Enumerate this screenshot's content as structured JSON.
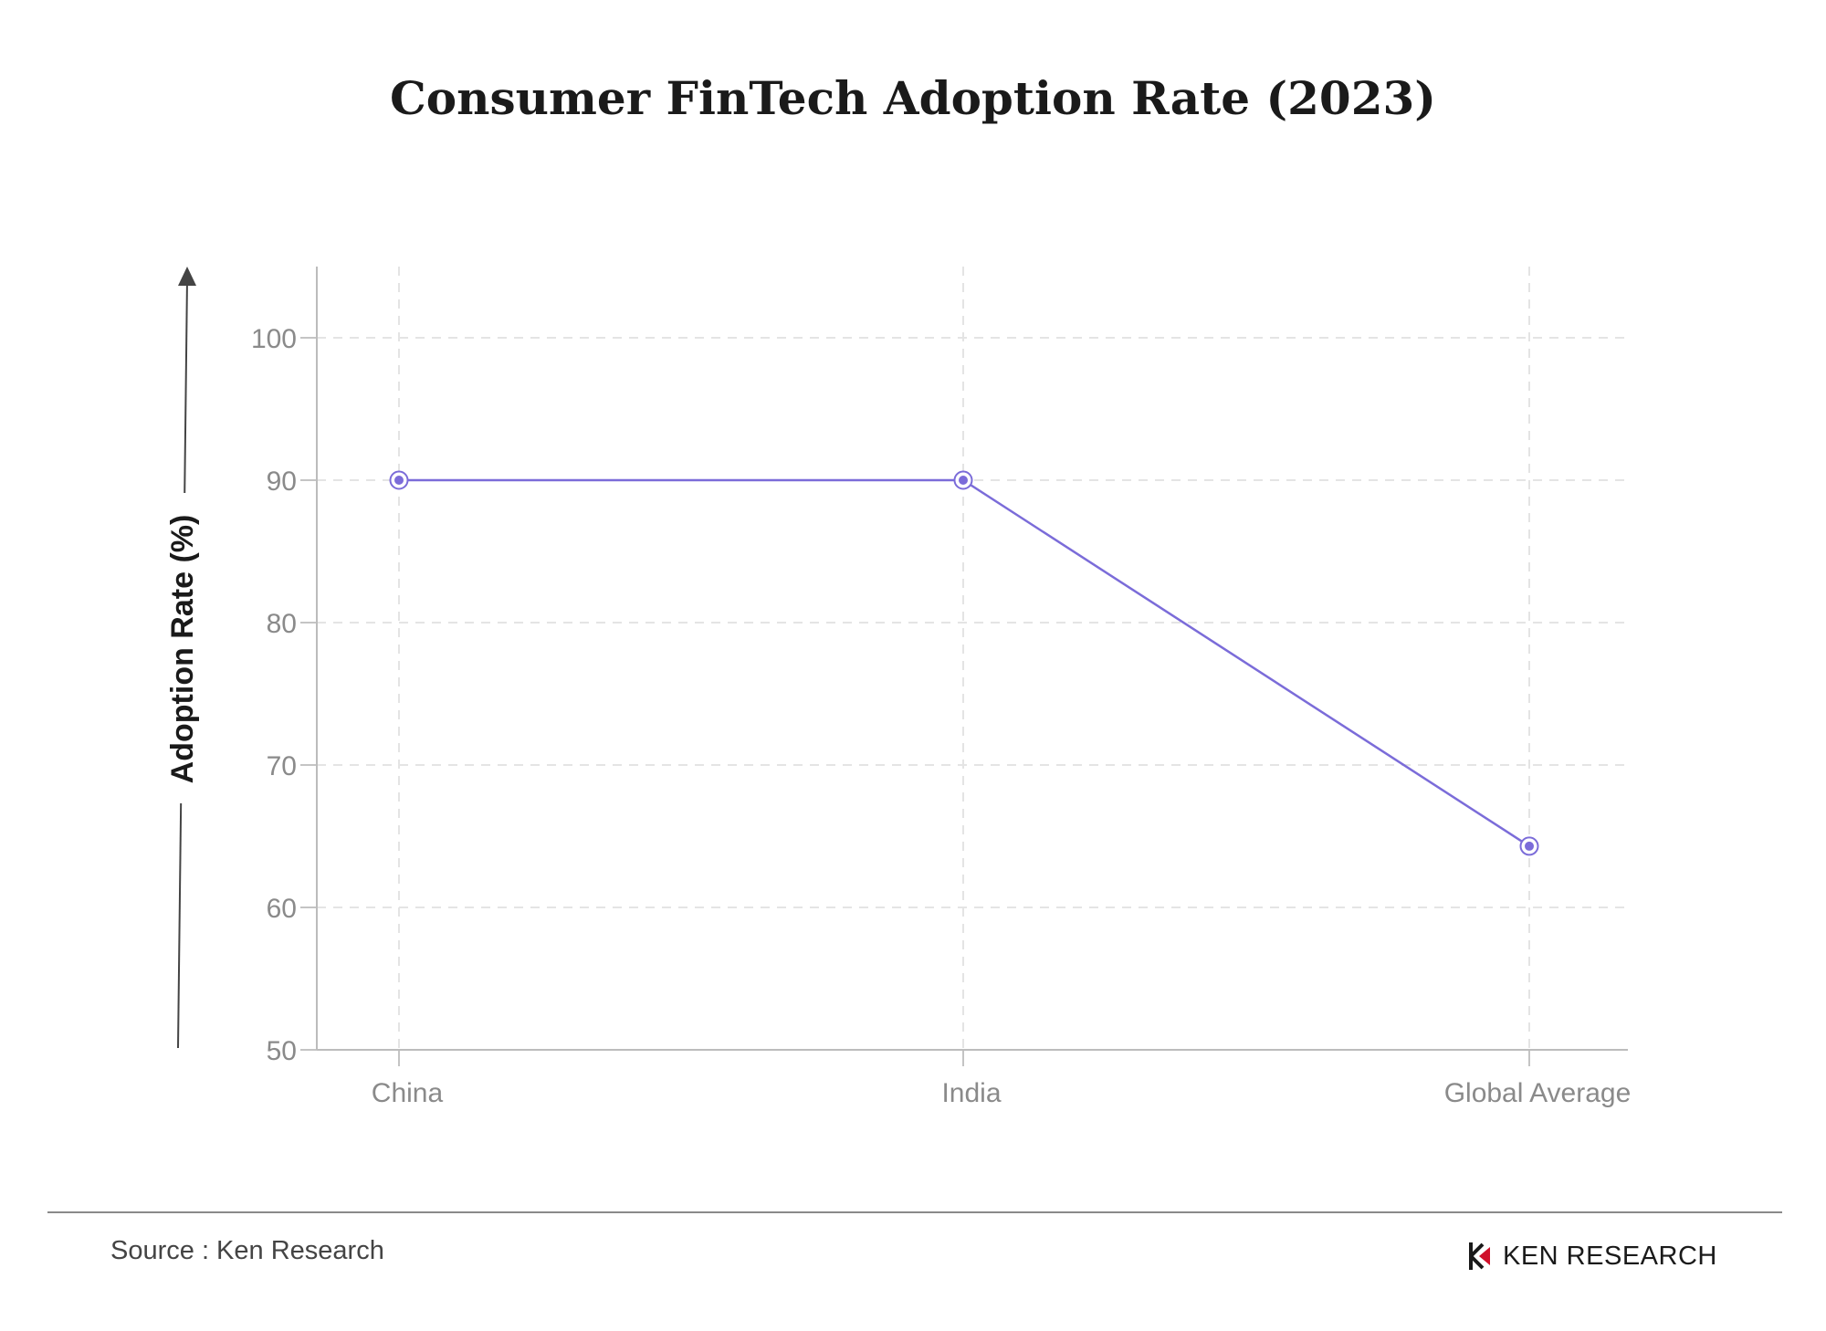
{
  "chart_data": {
    "type": "line",
    "title": "Consumer FinTech Adoption Rate (2023)",
    "xlabel": "",
    "ylabel": "Adoption Rate (%)",
    "categories": [
      "China",
      "India",
      "Global Average"
    ],
    "series": [
      {
        "values": [
          90,
          90,
          64.3
        ]
      }
    ],
    "ylim": [
      50,
      105
    ],
    "yticks": [
      50,
      60,
      70,
      80,
      90,
      100
    ],
    "grid": true,
    "line_color": "#7b6cd9"
  },
  "footer": {
    "source": "Source : Ken Research",
    "brand": "KEN RESEARCH"
  }
}
